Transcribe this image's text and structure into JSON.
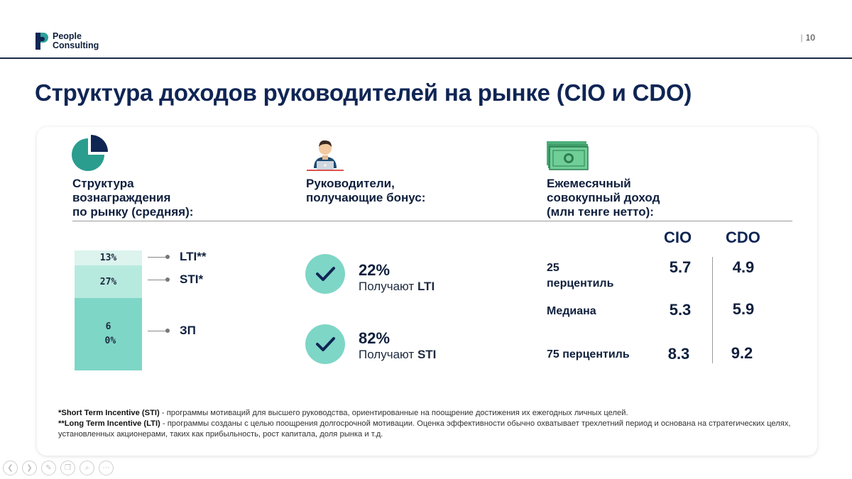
{
  "header": {
    "logo_line1": "People",
    "logo_line2": "Consulting",
    "page_sep": "|",
    "page_number": "10"
  },
  "title": "Структура доходов руководителей на рынке (CIO и CDO)",
  "columns": {
    "structure": {
      "icon": "pie-chart-icon",
      "heading": [
        "Структура",
        "вознаграждения",
        "по рынку (средняя):"
      ]
    },
    "bonus": {
      "icon": "manager-laptop-icon",
      "heading": [
        "Руководители,",
        "получающие бонус:"
      ]
    },
    "income": {
      "icon": "banknotes-icon",
      "heading": [
        "Ежемесячный",
        "совокупный доход",
        "(млн тенге нетто):"
      ]
    }
  },
  "structure_bar": {
    "segments": [
      {
        "label": "LTI**",
        "value_text": "13%",
        "color": "#dcf3ee"
      },
      {
        "label": "STI*",
        "value_text": "27%",
        "color": "#b7eadf"
      },
      {
        "label": "ЗП",
        "value_text": "60%",
        "color": "#7ed6c6"
      }
    ]
  },
  "bonus": {
    "items": [
      {
        "pct": "22%",
        "prefix": "Получают",
        "kind": "LTI"
      },
      {
        "pct": "82%",
        "prefix": "Получают",
        "kind": "STI"
      }
    ]
  },
  "income": {
    "columns": [
      "CIO",
      "CDO"
    ],
    "rows": [
      {
        "label_line1": "25",
        "label_line2": "перцентиль",
        "cio": "5.7",
        "cdo": "4.9"
      },
      {
        "label": "Медиана",
        "cio": "5.3",
        "cdo": "5.9"
      },
      {
        "label": "75 перцентиль",
        "cio": "8.3",
        "cdo": "9.2"
      }
    ]
  },
  "footnotes": {
    "sti_term": "*Short Term Incentive (STI)",
    "sti_text": " - программы мотиваций для высшего руководства, ориентированные на поощрение достижения их ежегодных личных целей.",
    "lti_term": "**Long Term Incentive (LTI)",
    "lti_text": " - программы созданы с целью поощрения долгосрочной мотивации. Оценка эффективности обычно охватывает трехлетний период и основана на стратегических целях, установленных акционерами, таких как прибыльность, рост капитала, доля рынка и т.д."
  },
  "colors": {
    "accent_teal": "#7ed6c6",
    "navy": "#0f2554",
    "pie_teal": "#2a9d8f"
  },
  "nav": [
    "prev-icon",
    "next-icon",
    "pen-icon",
    "copy-icon",
    "zoom-icon",
    "more-icon"
  ]
}
